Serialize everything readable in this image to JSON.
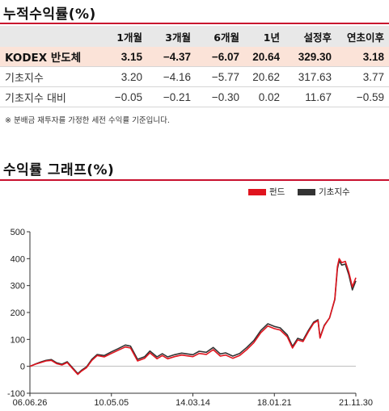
{
  "table_title": "누적수익률(%)",
  "table": {
    "columns": [
      "1개월",
      "3개월",
      "6개월",
      "1년",
      "설정후",
      "연초이후"
    ],
    "rows": [
      {
        "label": "KODEX 반도체",
        "values": [
          "3.15",
          "−4.37",
          "−6.07",
          "20.64",
          "329.30",
          "3.18"
        ],
        "highlight": true
      },
      {
        "label": "기초지수",
        "values": [
          "3.20",
          "−4.16",
          "−5.77",
          "20.62",
          "317.63",
          "3.77"
        ]
      },
      {
        "label": "기초지수 대비",
        "values": [
          "−0.05",
          "−0.21",
          "−0.30",
          "0.02",
          "11.67",
          "−0.59"
        ]
      }
    ]
  },
  "footnote": "※ 분배금 재투자를 가정한 세전 수익률 기준입니다.",
  "graph_title": "수익률 그래프(%)",
  "chart_data": {
    "type": "line",
    "title": "",
    "xlabel": "",
    "ylabel": "",
    "x_tick_labels": [
      "06.06.26",
      "10.05.05",
      "14.03.14",
      "18.01.21",
      "21.11.30"
    ],
    "x_start": "2006-06-26",
    "x_end": "2021-11-30",
    "ylim": [
      -100,
      500
    ],
    "y_ticks": [
      -100,
      0,
      100,
      200,
      300,
      400,
      500
    ],
    "legend_position": "top-right",
    "series": [
      {
        "name": "펀드",
        "color": "#e0141e",
        "points": [
          [
            "2006-06-26",
            0
          ],
          [
            "2006-10-01",
            8
          ],
          [
            "2007-01-01",
            14
          ],
          [
            "2007-04-01",
            20
          ],
          [
            "2007-07-01",
            22
          ],
          [
            "2007-10-01",
            10
          ],
          [
            "2008-01-01",
            5
          ],
          [
            "2008-04-01",
            14
          ],
          [
            "2008-07-01",
            -8
          ],
          [
            "2008-10-01",
            -30
          ],
          [
            "2008-12-01",
            -18
          ],
          [
            "2009-03-01",
            -5
          ],
          [
            "2009-06-01",
            22
          ],
          [
            "2009-09-01",
            40
          ],
          [
            "2010-01-01",
            35
          ],
          [
            "2010-05-05",
            48
          ],
          [
            "2010-09-01",
            60
          ],
          [
            "2011-01-01",
            72
          ],
          [
            "2011-04-01",
            68
          ],
          [
            "2011-08-01",
            20
          ],
          [
            "2011-12-01",
            30
          ],
          [
            "2012-03-01",
            50
          ],
          [
            "2012-07-01",
            28
          ],
          [
            "2012-10-01",
            40
          ],
          [
            "2013-01-01",
            28
          ],
          [
            "2013-05-01",
            36
          ],
          [
            "2013-09-01",
            42
          ],
          [
            "2014-03-14",
            36
          ],
          [
            "2014-07-01",
            48
          ],
          [
            "2014-11-01",
            44
          ],
          [
            "2015-03-01",
            62
          ],
          [
            "2015-07-01",
            38
          ],
          [
            "2015-10-01",
            42
          ],
          [
            "2016-02-01",
            30
          ],
          [
            "2016-06-01",
            40
          ],
          [
            "2016-10-01",
            62
          ],
          [
            "2017-02-01",
            88
          ],
          [
            "2017-06-01",
            125
          ],
          [
            "2017-10-01",
            150
          ],
          [
            "2018-01-21",
            140
          ],
          [
            "2018-05-01",
            135
          ],
          [
            "2018-09-01",
            110
          ],
          [
            "2018-12-01",
            68
          ],
          [
            "2019-03-01",
            98
          ],
          [
            "2019-06-01",
            92
          ],
          [
            "2019-09-01",
            128
          ],
          [
            "2019-12-01",
            160
          ],
          [
            "2020-02-15",
            170
          ],
          [
            "2020-03-20",
            105
          ],
          [
            "2020-06-01",
            150
          ],
          [
            "2020-09-01",
            180
          ],
          [
            "2020-12-01",
            250
          ],
          [
            "2021-01-15",
            370
          ],
          [
            "2021-02-15",
            400
          ],
          [
            "2021-04-01",
            385
          ],
          [
            "2021-06-01",
            390
          ],
          [
            "2021-08-01",
            350
          ],
          [
            "2021-10-01",
            295
          ],
          [
            "2021-11-30",
            329.3
          ]
        ]
      },
      {
        "name": "기초지수",
        "color": "#333333",
        "points": [
          [
            "2006-06-26",
            0
          ],
          [
            "2006-10-01",
            9
          ],
          [
            "2007-01-01",
            16
          ],
          [
            "2007-04-01",
            22
          ],
          [
            "2007-07-01",
            25
          ],
          [
            "2007-10-01",
            13
          ],
          [
            "2008-01-01",
            8
          ],
          [
            "2008-04-01",
            17
          ],
          [
            "2008-07-01",
            -5
          ],
          [
            "2008-10-01",
            -27
          ],
          [
            "2008-12-01",
            -15
          ],
          [
            "2009-03-01",
            -2
          ],
          [
            "2009-06-01",
            26
          ],
          [
            "2009-09-01",
            44
          ],
          [
            "2010-01-01",
            40
          ],
          [
            "2010-05-05",
            54
          ],
          [
            "2010-09-01",
            66
          ],
          [
            "2011-01-01",
            79
          ],
          [
            "2011-04-01",
            75
          ],
          [
            "2011-08-01",
            26
          ],
          [
            "2011-12-01",
            36
          ],
          [
            "2012-03-01",
            57
          ],
          [
            "2012-07-01",
            35
          ],
          [
            "2012-10-01",
            47
          ],
          [
            "2013-01-01",
            35
          ],
          [
            "2013-05-01",
            43
          ],
          [
            "2013-09-01",
            49
          ],
          [
            "2014-03-14",
            43
          ],
          [
            "2014-07-01",
            56
          ],
          [
            "2014-11-01",
            52
          ],
          [
            "2015-03-01",
            70
          ],
          [
            "2015-07-01",
            46
          ],
          [
            "2015-10-01",
            50
          ],
          [
            "2016-02-01",
            38
          ],
          [
            "2016-06-01",
            48
          ],
          [
            "2016-10-01",
            70
          ],
          [
            "2017-02-01",
            96
          ],
          [
            "2017-06-01",
            133
          ],
          [
            "2017-10-01",
            158
          ],
          [
            "2018-01-21",
            148
          ],
          [
            "2018-05-01",
            143
          ],
          [
            "2018-09-01",
            117
          ],
          [
            "2018-12-01",
            74
          ],
          [
            "2019-03-01",
            104
          ],
          [
            "2019-06-01",
            97
          ],
          [
            "2019-09-01",
            133
          ],
          [
            "2019-12-01",
            164
          ],
          [
            "2020-02-15",
            173
          ],
          [
            "2020-03-20",
            108
          ],
          [
            "2020-06-01",
            152
          ],
          [
            "2020-09-01",
            180
          ],
          [
            "2020-12-01",
            248
          ],
          [
            "2021-01-15",
            362
          ],
          [
            "2021-02-15",
            392
          ],
          [
            "2021-04-01",
            376
          ],
          [
            "2021-06-01",
            380
          ],
          [
            "2021-08-01",
            340
          ],
          [
            "2021-10-01",
            284
          ],
          [
            "2021-11-30",
            317.63
          ]
        ]
      }
    ]
  }
}
